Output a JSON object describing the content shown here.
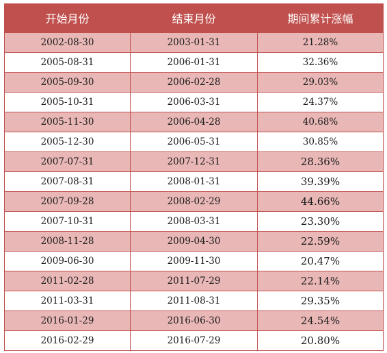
{
  "table": {
    "headers": [
      "开始月份",
      "结束月份",
      "期间累计涨幅"
    ],
    "rows": [
      {
        "start": "2002-08-30",
        "end": "2003-01-31",
        "gain": "21.28%"
      },
      {
        "start": "2005-08-31",
        "end": "2006-01-31",
        "gain": "32.36%"
      },
      {
        "start": "2005-09-30",
        "end": "2006-02-28",
        "gain": "29.03%"
      },
      {
        "start": "2005-10-31",
        "end": "2006-03-31",
        "gain": "24.37%"
      },
      {
        "start": "2005-11-30",
        "end": "2006-04-28",
        "gain": "40.68%"
      },
      {
        "start": "2005-12-30",
        "end": "2006-05-31",
        "gain": "30.85%"
      },
      {
        "start": "2007-07-31",
        "end": "2007-12-31",
        "gain": "28.36%"
      },
      {
        "start": "2007-08-31",
        "end": "2008-01-31",
        "gain": "39.39%"
      },
      {
        "start": "2007-09-28",
        "end": "2008-02-29",
        "gain": "44.66%"
      },
      {
        "start": "2007-10-31",
        "end": "2008-03-31",
        "gain": "23.30%"
      },
      {
        "start": "2008-11-28",
        "end": "2009-04-30",
        "gain": "22.59%"
      },
      {
        "start": "2009-06-30",
        "end": "2009-11-30",
        "gain": "20.47%"
      },
      {
        "start": "2011-02-28",
        "end": "2011-07-29",
        "gain": "22.14%"
      },
      {
        "start": "2011-03-31",
        "end": "2011-08-31",
        "gain": "29.35%"
      },
      {
        "start": "2016-01-29",
        "end": "2016-06-30",
        "gain": "24.54%"
      },
      {
        "start": "2016-02-29",
        "end": "2016-07-29",
        "gain": "20.80%"
      }
    ]
  },
  "colors": {
    "header_bg": "#c0504d",
    "header_text": "#ffffff",
    "stripe_bg": "#e8b7b6",
    "border": "#c0504d"
  }
}
